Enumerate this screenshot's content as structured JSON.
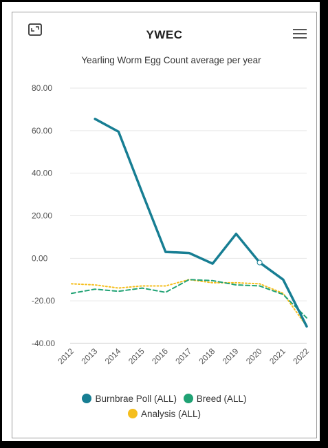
{
  "header": {
    "title": "YWEC",
    "expand_icon": "expand-icon",
    "menu_icon": "hamburger-menu-icon"
  },
  "chart_data": {
    "type": "line",
    "title": "Yearling Worm Egg Count average per year",
    "xlabel": "",
    "ylabel": "",
    "ylim": [
      -40,
      80
    ],
    "grid": true,
    "legend_position": "bottom",
    "y_tick_labels": [
      "80.00",
      "60.00",
      "40.00",
      "20.00",
      "0.00",
      "-20.00",
      "-40.00"
    ],
    "categories": [
      "2012",
      "2013",
      "2014",
      "2015",
      "2016",
      "2017",
      "2018",
      "2019",
      "2020",
      "2021",
      "2022"
    ],
    "series": [
      {
        "name": "Burnbrae Poll (ALL)",
        "color": "#177e93",
        "style": "solid",
        "values": [
          null,
          65.5,
          59.5,
          31,
          3,
          2.5,
          -2.5,
          11.5,
          -2,
          -10,
          -32
        ]
      },
      {
        "name": "Breed (ALL)",
        "color": "#20a274",
        "style": "dashed",
        "values": [
          -16.5,
          -14.5,
          -15.5,
          -14,
          -16,
          -10,
          -10.5,
          -12.5,
          -13,
          -17,
          -28
        ]
      },
      {
        "name": "Analysis (ALL)",
        "color": "#f5be1d",
        "style": "dotted",
        "values": [
          -12,
          -12.5,
          -14,
          -13,
          -13,
          -10,
          -11.5,
          -11.5,
          -12,
          -16.5,
          -32
        ]
      }
    ]
  }
}
